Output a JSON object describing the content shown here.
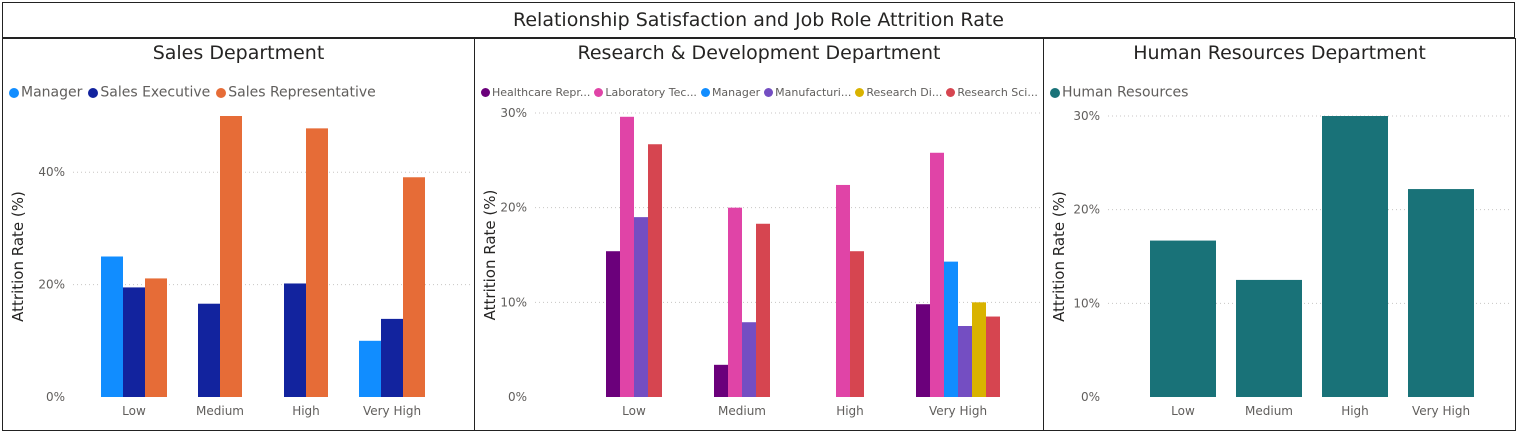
{
  "page": {
    "title": "Relationship Satisfaction and Job Role Attrition Rate"
  },
  "chart_data": [
    {
      "type": "bar",
      "title": "Sales Department",
      "ylabel": "Attrition Rate (%)",
      "categories": [
        "Low",
        "Medium",
        "High",
        "Very High"
      ],
      "ylim": [
        0,
        50
      ],
      "yticks": [
        "0%",
        "20%",
        "40%"
      ],
      "ytick_values": [
        0,
        20,
        40
      ],
      "grid": true,
      "legend_position": "top-left",
      "series": [
        {
          "name": "Manager",
          "color": "#118DFF",
          "values": [
            25,
            null,
            null,
            10
          ]
        },
        {
          "name": "Sales Executive",
          "color": "#12239E",
          "values": [
            19.5,
            16.6,
            20.2,
            13.9
          ]
        },
        {
          "name": "Sales Representative",
          "color": "#E66C37",
          "values": [
            21.1,
            50.0,
            47.8,
            39.1
          ]
        }
      ]
    },
    {
      "type": "bar",
      "title": "Research & Development Department",
      "ylabel": "Attrition Rate (%)",
      "categories": [
        "Low",
        "Medium",
        "High",
        "Very High"
      ],
      "ylim": [
        0,
        30
      ],
      "yticks": [
        "0%",
        "10%",
        "20%",
        "30%"
      ],
      "ytick_values": [
        0,
        10,
        20,
        30
      ],
      "grid": true,
      "legend_position": "top-left",
      "series": [
        {
          "name": "Healthcare Repr...",
          "color": "#6B007B",
          "values": [
            15.4,
            3.4,
            null,
            9.8
          ]
        },
        {
          "name": "Laboratory Tec...",
          "color": "#E044A7",
          "values": [
            29.6,
            20.0,
            22.4,
            25.8
          ]
        },
        {
          "name": "Manager",
          "color": "#118DFF",
          "values": [
            null,
            null,
            null,
            14.3
          ]
        },
        {
          "name": "Manufacturi...",
          "color": "#744EC2",
          "values": [
            19.0,
            7.9,
            null,
            7.5
          ]
        },
        {
          "name": "Research Di...",
          "color": "#D9B300",
          "values": [
            null,
            null,
            null,
            10.0
          ]
        },
        {
          "name": "Research Sci...",
          "color": "#D64550",
          "values": [
            26.7,
            18.3,
            15.4,
            8.5
          ]
        }
      ]
    },
    {
      "type": "bar",
      "title": "Human Resources Department",
      "ylabel": "Attrition Rate (%)",
      "categories": [
        "Low",
        "Medium",
        "High",
        "Very High"
      ],
      "ylim": [
        0,
        30
      ],
      "yticks": [
        "0%",
        "10%",
        "20%",
        "30%"
      ],
      "ytick_values": [
        0,
        10,
        20,
        30
      ],
      "grid": true,
      "legend_position": "top-left",
      "series": [
        {
          "name": "Human Resources",
          "color": "#197278",
          "values": [
            16.7,
            12.5,
            30.0,
            22.2
          ]
        }
      ]
    }
  ]
}
